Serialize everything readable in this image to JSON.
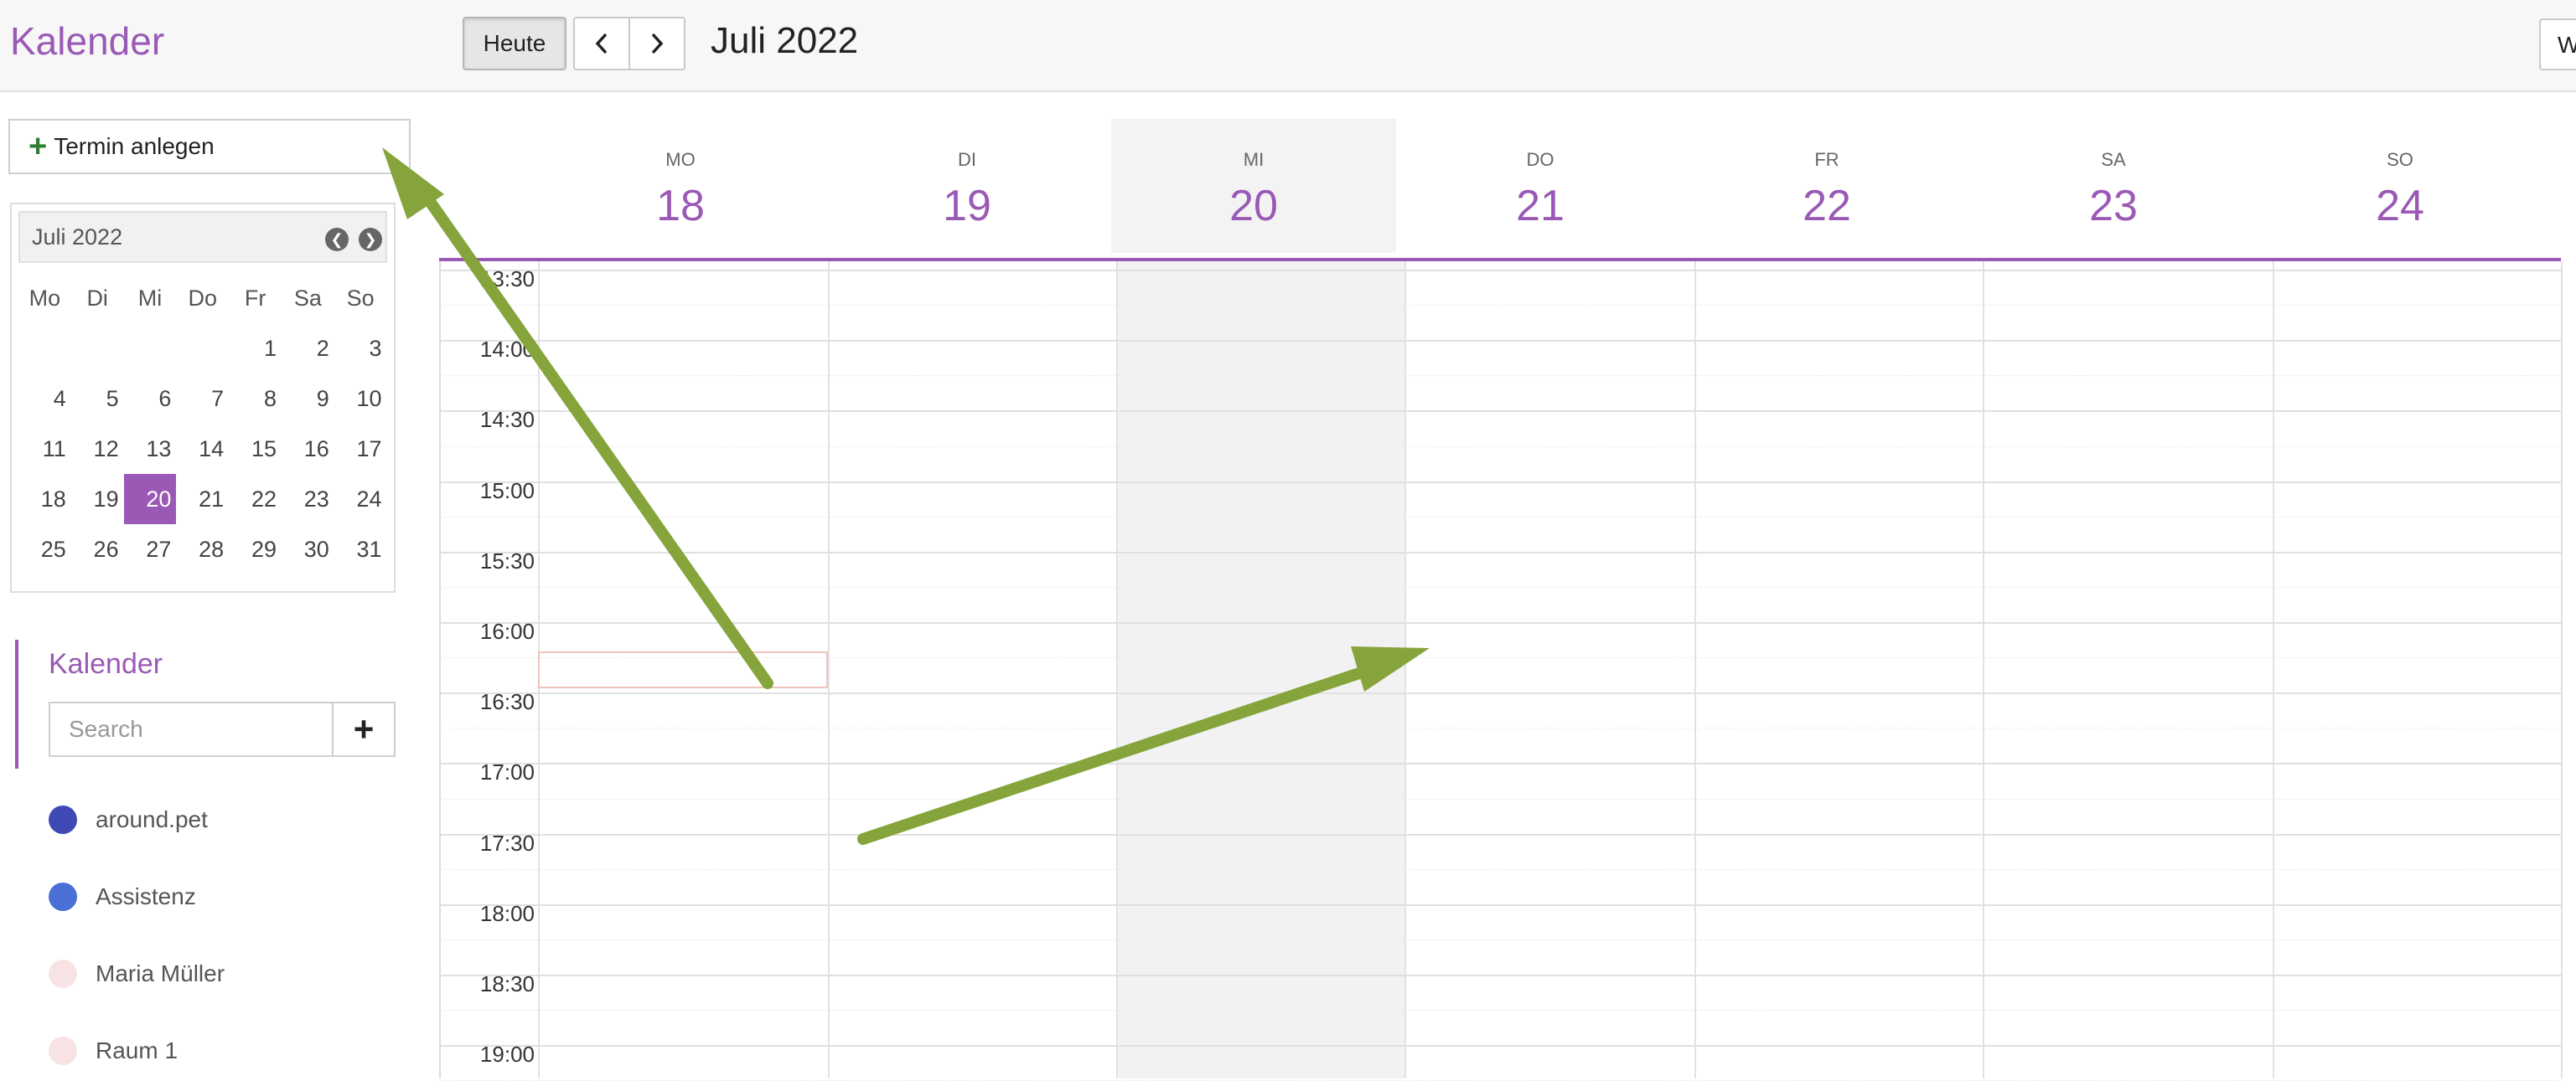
{
  "header": {
    "app_title": "Kalender",
    "today_label": "Heute",
    "month_title": "Juli 2022",
    "view_label": "W"
  },
  "sidebar": {
    "new_event_label": "Termin anlegen",
    "mini_calendar": {
      "title": "Juli 2022",
      "weekdays": [
        "Mo",
        "Di",
        "Mi",
        "Do",
        "Fr",
        "Sa",
        "So"
      ],
      "weeks": [
        [
          "",
          "",
          "",
          "",
          "1",
          "2",
          "3"
        ],
        [
          "4",
          "5",
          "6",
          "7",
          "8",
          "9",
          "10"
        ],
        [
          "11",
          "12",
          "13",
          "14",
          "15",
          "16",
          "17"
        ],
        [
          "18",
          "19",
          "20",
          "21",
          "22",
          "23",
          "24"
        ],
        [
          "25",
          "26",
          "27",
          "28",
          "29",
          "30",
          "31"
        ]
      ],
      "selected": "20"
    },
    "calendars_heading": "Kalender",
    "search_placeholder": "Search",
    "add_label": "+",
    "calendars": [
      {
        "label": "around.pet",
        "color": "#3f48b3"
      },
      {
        "label": "Assistenz",
        "color": "#4a70d6"
      },
      {
        "label": "Maria Müller",
        "color": "#f7e3e3"
      },
      {
        "label": "Raum 1",
        "color": "#f7e3e3"
      }
    ]
  },
  "week": {
    "days": [
      {
        "dow": "MO",
        "date": "18"
      },
      {
        "dow": "DI",
        "date": "19"
      },
      {
        "dow": "MI",
        "date": "20"
      },
      {
        "dow": "DO",
        "date": "21"
      },
      {
        "dow": "FR",
        "date": "22"
      },
      {
        "dow": "SA",
        "date": "23"
      },
      {
        "dow": "SO",
        "date": "24"
      }
    ],
    "today_date": "20",
    "times": [
      "13:30",
      "14:00",
      "14:30",
      "15:00",
      "15:30",
      "16:00",
      "16:30",
      "17:00",
      "17:30",
      "18:00",
      "18:30",
      "19:00"
    ]
  },
  "colors": {
    "accent": "#9a59b5",
    "annotation_arrow": "#86a43c"
  }
}
